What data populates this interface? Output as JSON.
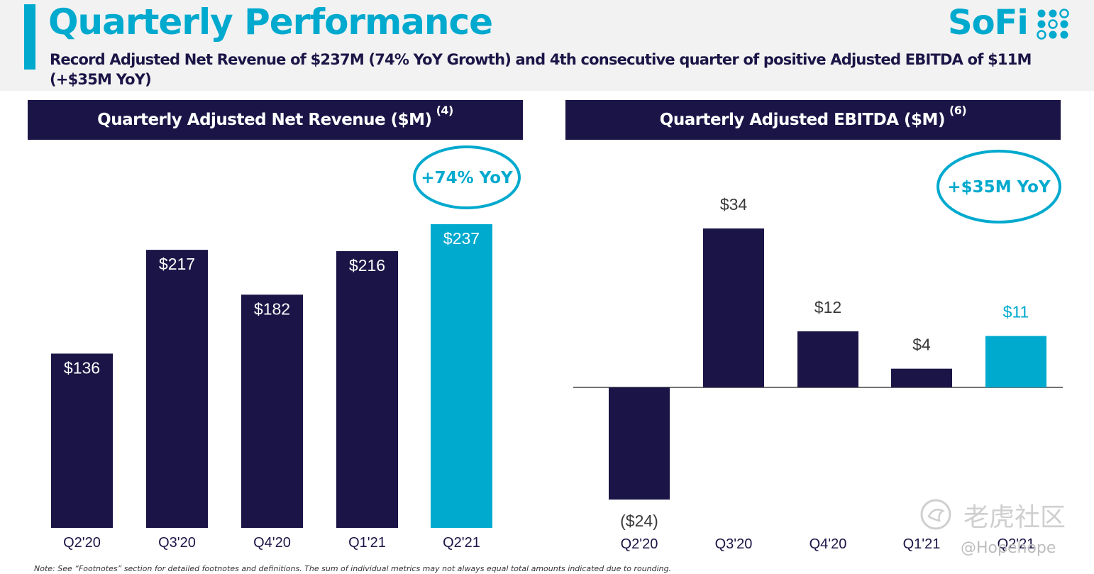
{
  "header": {
    "title": "Quarterly Performance",
    "subtitle": "Record Adjusted Net Revenue of $237M (74% YoY Growth) and 4th consecutive quarter of positive Adjusted EBITDA of $11M (+$35M YoY)",
    "logo_text": "SoFi"
  },
  "colors": {
    "navy": "#1b1547",
    "teal": "#00a9ce",
    "header_bg": "#f2f2f2"
  },
  "chart_data": [
    {
      "type": "bar",
      "title": "Quarterly Adjusted Net Revenue ($M)",
      "title_footnote": "(4)",
      "categories": [
        "Q2'20",
        "Q3'20",
        "Q4'20",
        "Q1'21",
        "Q2'21"
      ],
      "values": [
        136,
        217,
        182,
        216,
        237
      ],
      "value_labels": [
        "$136",
        "$217",
        "$182",
        "$216",
        "$237"
      ],
      "highlight_index": 4,
      "annotation": "+74% YoY",
      "ylim": [
        0,
        250
      ]
    },
    {
      "type": "bar",
      "title": "Quarterly Adjusted EBITDA ($M)",
      "title_footnote": "(6)",
      "categories": [
        "Q2'20",
        "Q3'20",
        "Q4'20",
        "Q1'21",
        "Q2'21"
      ],
      "values": [
        -24,
        34,
        12,
        4,
        11
      ],
      "value_labels": [
        "($24)",
        "$34",
        "$12",
        "$4",
        "$11"
      ],
      "highlight_index": 4,
      "annotation": "+$35M YoY",
      "ylim": [
        -24,
        34
      ]
    }
  ],
  "footer": {
    "note": "Note: See “Footnotes” section for detailed footnotes and definitions. The sum of individual metrics may not always equal total amounts indicated due to rounding."
  },
  "watermark": {
    "brand": "老虎社区",
    "handle": "@Hopehope"
  }
}
